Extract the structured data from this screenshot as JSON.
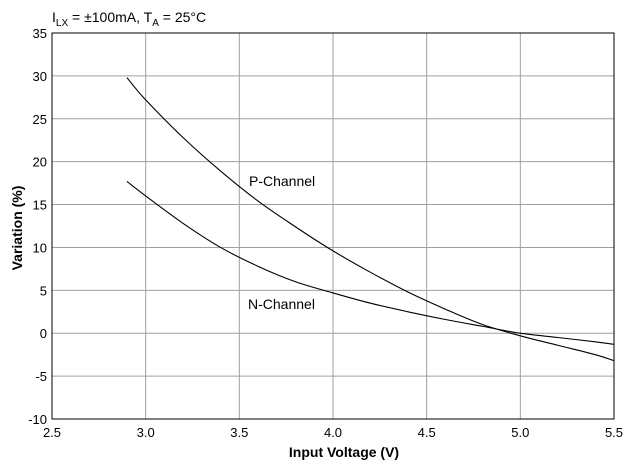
{
  "chart_data": {
    "type": "line",
    "title": "",
    "conditions": {
      "i_base": "I",
      "i_sub": "LX",
      "i_rest": " = ±100mA, T",
      "t_sub": "A",
      "t_rest": " = 25°C"
    },
    "xlabel": "Input Voltage (V)",
    "ylabel": "Variation (%)",
    "xlim": [
      2.5,
      5.5
    ],
    "ylim": [
      -10,
      35
    ],
    "grid": true,
    "x_ticks": [
      "2.5",
      "3.0",
      "3.5",
      "4.0",
      "4.5",
      "5.0",
      "5.5"
    ],
    "y_ticks": [
      "35",
      "30",
      "25",
      "20",
      "15",
      "10",
      "5",
      "0",
      "-5",
      "-10"
    ],
    "series": [
      {
        "name": "P-Channel",
        "color": "#000000",
        "x": [
          2.9,
          3.0,
          3.2,
          3.4,
          3.6,
          3.8,
          4.0,
          4.2,
          4.4,
          4.6,
          4.8,
          5.0,
          5.2,
          5.4,
          5.5
        ],
        "y": [
          29.8,
          27.2,
          22.8,
          18.9,
          15.4,
          12.4,
          9.6,
          7.1,
          4.8,
          2.8,
          1.0,
          -0.3,
          -1.4,
          -2.5,
          -3.2
        ]
      },
      {
        "name": "N-Channel",
        "color": "#000000",
        "x": [
          2.9,
          3.0,
          3.2,
          3.4,
          3.6,
          3.8,
          4.0,
          4.2,
          4.4,
          4.6,
          4.8,
          5.0,
          5.2,
          5.4,
          5.5
        ],
        "y": [
          17.7,
          16.0,
          12.8,
          10.0,
          7.8,
          6.0,
          4.7,
          3.5,
          2.5,
          1.6,
          0.8,
          0.0,
          -0.5,
          -1.0,
          -1.3
        ]
      }
    ]
  }
}
